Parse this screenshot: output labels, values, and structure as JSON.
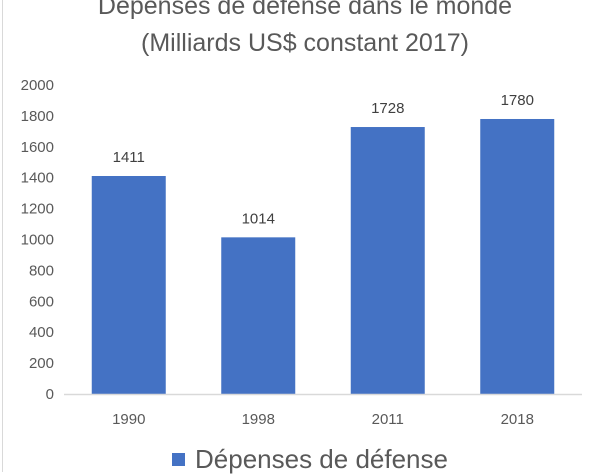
{
  "chart_data": {
    "type": "bar",
    "title_line1": "Dépenses de défense dans le monde",
    "title_line2": "(Milliards US$ constant 2017)",
    "categories": [
      "1990",
      "1998",
      "2011",
      "2018"
    ],
    "series": [
      {
        "name": "Dépenses de défense",
        "values": [
          1411,
          1014,
          1728,
          1780
        ],
        "color": "#4472C4"
      }
    ],
    "ylim": [
      0,
      2000
    ],
    "yticks": [
      0,
      200,
      400,
      600,
      800,
      1000,
      1200,
      1400,
      1600,
      1800,
      2000
    ],
    "grid": false,
    "legend": "bottom",
    "xlabel": "",
    "ylabel": ""
  }
}
